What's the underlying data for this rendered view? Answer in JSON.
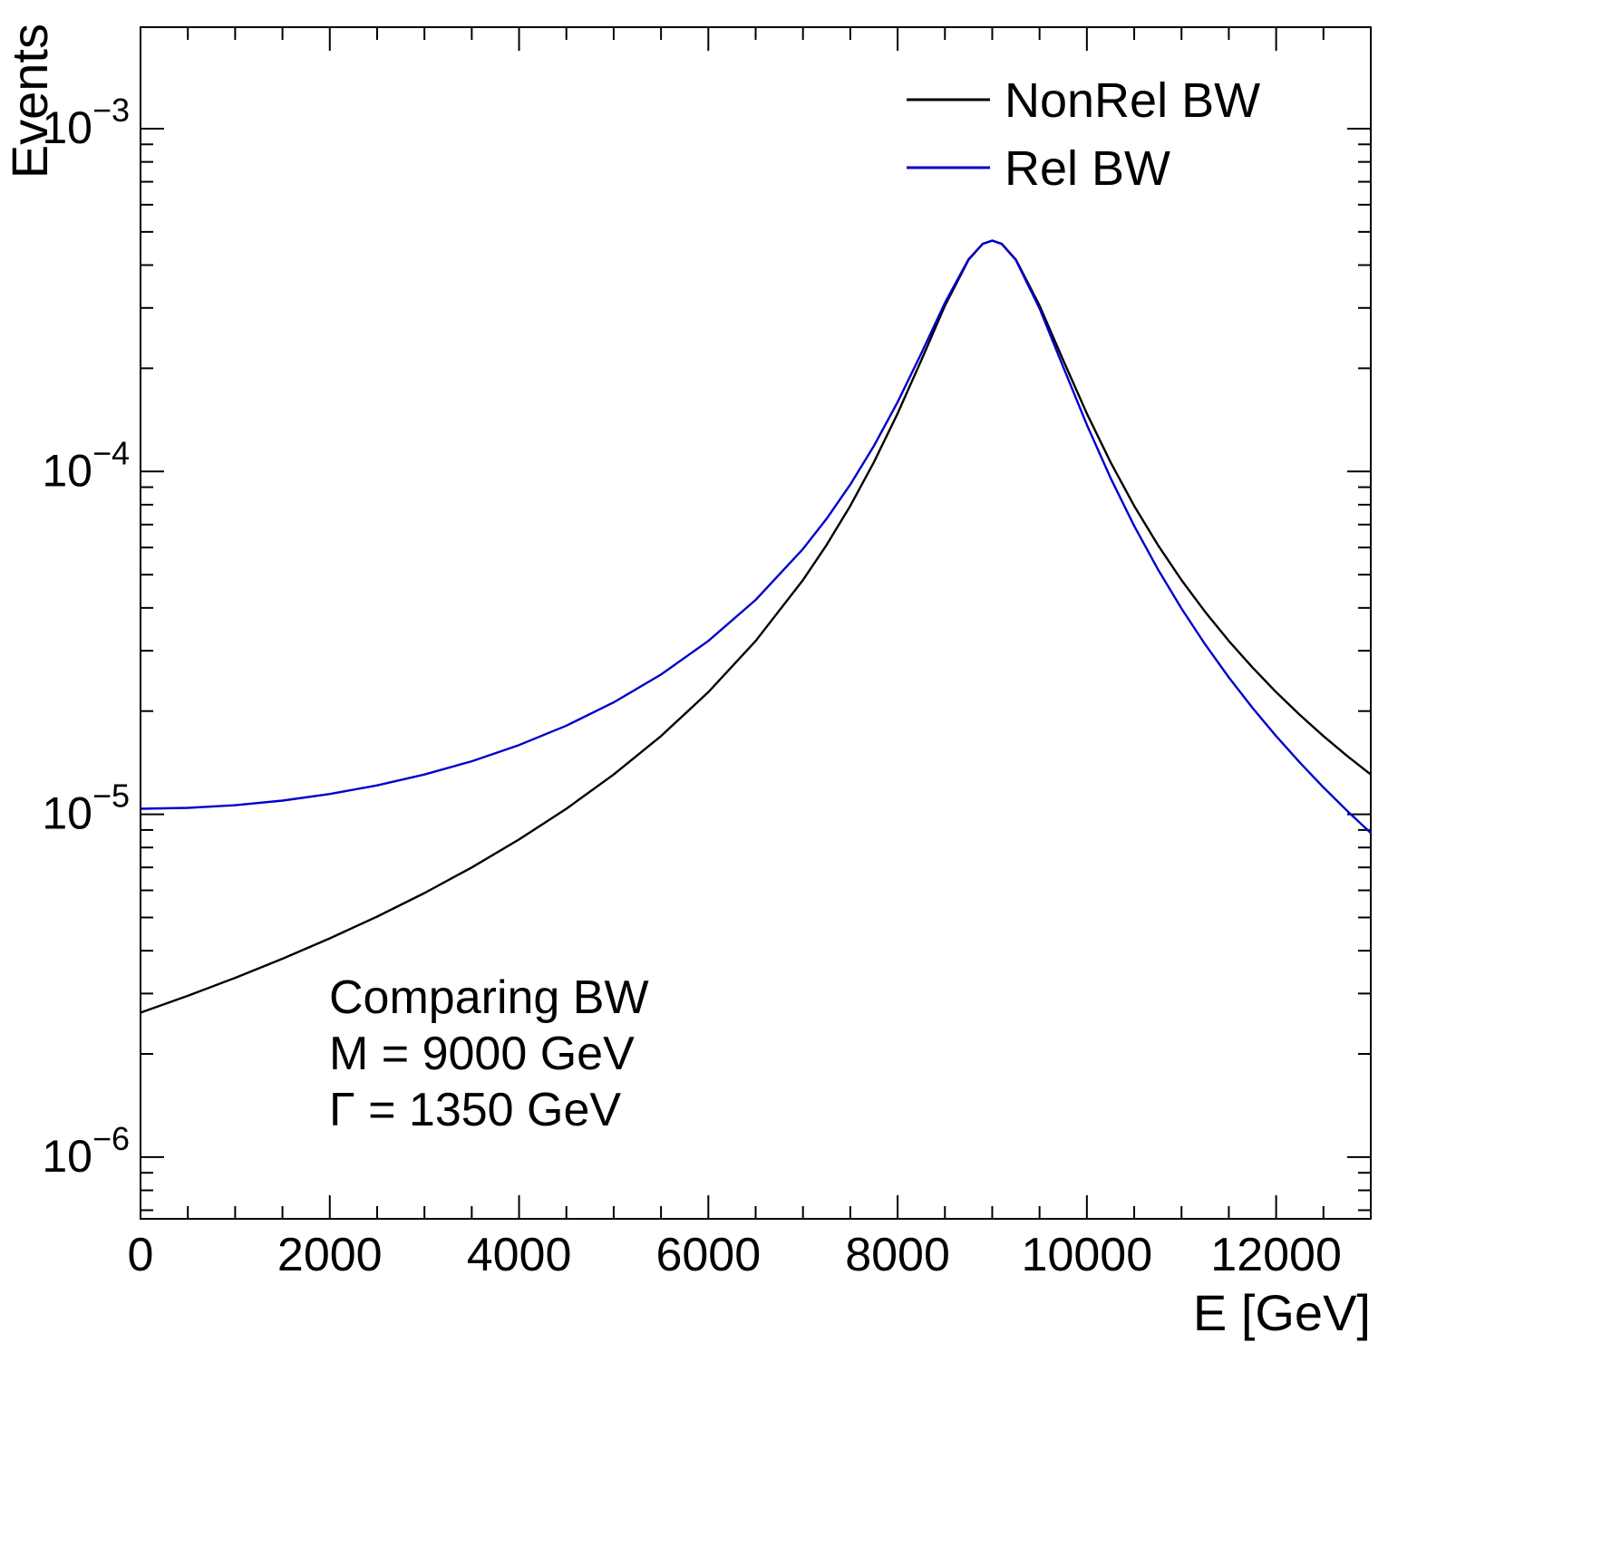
{
  "chart_data": {
    "type": "line",
    "title": "",
    "xlabel": "E [GeV]",
    "ylabel": "Events",
    "xlim": [
      0,
      13000
    ],
    "ylim_log10": [
      -6.18,
      -2.704
    ],
    "grid": false,
    "legend_position": "top-right-inside",
    "x_major_ticks": [
      0,
      2000,
      4000,
      6000,
      8000,
      10000,
      12000
    ],
    "x_minor_step": 500,
    "y_decades": [
      -6,
      -5,
      -4,
      -3
    ],
    "legend": [
      {
        "label": "NonRel BW",
        "color": "#000000"
      },
      {
        "label": "Rel BW",
        "color": "#0000cc"
      }
    ],
    "annotation_lines": [
      "Comparing BW",
      "M = 9000 GeV",
      "Γ = 1350 GeV"
    ],
    "params": {
      "mass_gev": 9000,
      "width_gev": 1350
    },
    "x": [
      0,
      500,
      1000,
      1500,
      2000,
      2500,
      3000,
      3500,
      4000,
      4500,
      5000,
      5500,
      6000,
      6500,
      7000,
      7250,
      7500,
      7750,
      8000,
      8250,
      8500,
      8750,
      8900,
      9000,
      9100,
      9250,
      9500,
      9750,
      10000,
      10250,
      10500,
      10750,
      11000,
      11250,
      11500,
      11750,
      12000,
      12250,
      12500,
      12750,
      13000
    ],
    "series": [
      {
        "name": "NonRel BW",
        "color": "#000000",
        "y": [
          2.638e-06,
          2.955e-06,
          3.333e-06,
          3.789e-06,
          4.345e-06,
          5.031e-06,
          5.894e-06,
          6.997e-06,
          8.441e-06,
          1.038e-05,
          1.306e-05,
          1.691e-05,
          2.272e-05,
          3.204e-05,
          4.822e-05,
          6.107e-05,
          7.941e-05,
          0.0001065,
          0.0001476,
          0.000211,
          0.0003045,
          0.0004147,
          0.0004614,
          0.0004716,
          0.0004614,
          0.0004147,
          0.0003045,
          0.000211,
          0.0001476,
          0.0001065,
          7.941e-05,
          6.107e-05,
          4.822e-05,
          3.894e-05,
          3.204e-05,
          2.68e-05,
          2.272e-05,
          1.95e-05,
          1.691e-05,
          1.48e-05,
          1.306e-05
        ]
      },
      {
        "name": "Rel BW",
        "color": "#0000cc",
        "y": [
          1.038e-05,
          1.044e-05,
          1.063e-05,
          1.096e-05,
          1.146e-05,
          1.214e-05,
          1.306e-05,
          1.428e-05,
          1.592e-05,
          1.814e-05,
          2.12e-05,
          2.556e-05,
          3.204e-05,
          4.221e-05,
          5.942e-05,
          7.28e-05,
          9.158e-05,
          0.0001188,
          0.0001594,
          0.000221,
          0.0003105,
          0.0004161,
          0.0004616,
          0.0004716,
          0.0004613,
          0.0004133,
          0.0002985,
          0.0002016,
          0.0001369,
          9.581e-05,
          6.939e-05,
          5.187e-05,
          3.983e-05,
          3.131e-05,
          2.509e-05,
          2.045e-05,
          1.691e-05,
          1.416e-05,
          1.198e-05,
          1.024e-05,
          8.821e-06
        ]
      }
    ]
  }
}
